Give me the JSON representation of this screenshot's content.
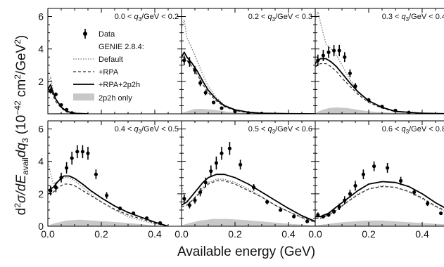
{
  "chart_data": {
    "type": "line",
    "xlabel": "Available energy (GeV)",
    "ylabel": "d²σ/dE_avail dq₃ (10⁻⁴² cm²/GeV²)",
    "ylabel_parts": {
      "d1": "d",
      "exp2": "2",
      "sigma": "σ/d",
      "E": "E",
      "avail": "avail",
      "dq": "dq",
      "sub3": "3",
      "unit_pre": " (10",
      "exp_neg42": "−42",
      "unit_post": " cm",
      "exp_sq": "2",
      "unit_tail": "/GeV",
      "exp_sq2": "2",
      "close": ")"
    },
    "xlim": [
      0,
      0.5
    ],
    "ylim": [
      0,
      6.5
    ],
    "x_ticks": [
      "0.0",
      "0.2",
      "0.4"
    ],
    "y_ticks": [
      "0",
      "2",
      "4",
      "6"
    ],
    "legend": {
      "title": "GENIE 2.8.4:",
      "data_label": "Data",
      "entries": [
        "Default",
        "+RPA",
        "+RPA+2p2h",
        "2p2h only"
      ],
      "colors": {
        "data": "#000000",
        "default": "#888888",
        "rpa": "#333333",
        "rpa2p2h": "#000000",
        "fill2p2h": "#c8c8c8"
      }
    },
    "panels": [
      {
        "label_left": "0.0 < ",
        "label_q": "q",
        "label_sub": "3",
        "label_right": "/GeV < 0.2",
        "data": {
          "x": [
            0.01,
            0.03,
            0.05,
            0.07,
            0.09
          ],
          "y": [
            1.4,
            1.2,
            0.55,
            0.25,
            0.05
          ],
          "err": [
            0.15,
            0.12,
            0.08,
            0.05,
            0.03
          ]
        },
        "default": {
          "x": [
            0.0,
            0.01,
            0.02,
            0.03,
            0.05,
            0.07,
            0.1,
            0.15
          ],
          "y": [
            1.8,
            2.3,
            1.4,
            0.9,
            0.4,
            0.15,
            0.03,
            0.0
          ]
        },
        "rpa": {
          "x": [
            0.0,
            0.01,
            0.02,
            0.03,
            0.05,
            0.07,
            0.1,
            0.15
          ],
          "y": [
            1.3,
            1.6,
            1.1,
            0.75,
            0.35,
            0.12,
            0.02,
            0.0
          ]
        },
        "rpa2p2h": {
          "x": [
            0.0,
            0.01,
            0.02,
            0.03,
            0.05,
            0.07,
            0.1,
            0.15
          ],
          "y": [
            1.5,
            1.8,
            1.3,
            0.9,
            0.42,
            0.15,
            0.03,
            0.0
          ]
        },
        "twop2h": {
          "x": [
            0.0,
            0.05,
            0.1,
            0.15
          ],
          "y": [
            0.03,
            0.05,
            0.02,
            0.0
          ]
        }
      },
      {
        "label_left": "0.2 < ",
        "label_q": "q",
        "label_sub": "3",
        "label_right": "/GeV < 0.3",
        "data": {
          "x": [
            0.01,
            0.03,
            0.05,
            0.07,
            0.09,
            0.12,
            0.15,
            0.2,
            0.25,
            0.3
          ],
          "y": [
            3.3,
            3.2,
            2.7,
            1.9,
            1.3,
            0.7,
            0.35,
            0.15,
            0.05,
            0.02
          ],
          "err": [
            0.3,
            0.3,
            0.25,
            0.2,
            0.15,
            0.1,
            0.08,
            0.05,
            0.03,
            0.02
          ]
        },
        "default": {
          "x": [
            0.0,
            0.01,
            0.02,
            0.04,
            0.06,
            0.08,
            0.1,
            0.13,
            0.16,
            0.2,
            0.25,
            0.3,
            0.4,
            0.5
          ],
          "y": [
            5.3,
            5.8,
            4.7,
            4.0,
            3.2,
            2.4,
            1.7,
            1.0,
            0.55,
            0.25,
            0.1,
            0.04,
            0.01,
            0.0
          ]
        },
        "rpa": {
          "x": [
            0.0,
            0.01,
            0.02,
            0.04,
            0.06,
            0.08,
            0.1,
            0.13,
            0.16,
            0.2,
            0.25,
            0.3,
            0.4,
            0.5
          ],
          "y": [
            3.2,
            3.5,
            3.3,
            2.9,
            2.4,
            1.8,
            1.3,
            0.8,
            0.45,
            0.2,
            0.08,
            0.03,
            0.01,
            0.0
          ]
        },
        "rpa2p2h": {
          "x": [
            0.0,
            0.01,
            0.02,
            0.04,
            0.06,
            0.08,
            0.1,
            0.13,
            0.16,
            0.2,
            0.25,
            0.3,
            0.4,
            0.5
          ],
          "y": [
            3.5,
            3.8,
            3.5,
            3.1,
            2.6,
            2.0,
            1.45,
            0.9,
            0.5,
            0.25,
            0.1,
            0.04,
            0.01,
            0.0
          ]
        },
        "twop2h": {
          "x": [
            0.0,
            0.02,
            0.05,
            0.08,
            0.12,
            0.16,
            0.2,
            0.3,
            0.5
          ],
          "y": [
            0.05,
            0.15,
            0.3,
            0.3,
            0.25,
            0.15,
            0.08,
            0.02,
            0.0
          ]
        }
      },
      {
        "label_left": "0.3 < ",
        "label_q": "q",
        "label_sub": "3",
        "label_right": "/GeV < 0.4",
        "data": {
          "x": [
            0.01,
            0.03,
            0.05,
            0.07,
            0.09,
            0.11,
            0.13,
            0.15,
            0.2,
            0.25,
            0.3,
            0.35
          ],
          "y": [
            3.3,
            3.6,
            3.8,
            3.9,
            3.9,
            3.5,
            2.5,
            1.7,
            0.85,
            0.45,
            0.2,
            0.08
          ],
          "err": [
            0.35,
            0.35,
            0.35,
            0.35,
            0.35,
            0.3,
            0.25,
            0.2,
            0.12,
            0.08,
            0.05,
            0.04
          ]
        },
        "default": {
          "x": [
            0.0,
            0.01,
            0.02,
            0.04,
            0.06,
            0.08,
            0.1,
            0.13,
            0.16,
            0.2,
            0.25,
            0.3,
            0.4,
            0.5
          ],
          "y": [
            5.8,
            6.3,
            5.6,
            4.3,
            4.0,
            3.6,
            3.0,
            2.1,
            1.4,
            0.8,
            0.4,
            0.15,
            0.04,
            0.0
          ]
        },
        "rpa": {
          "x": [
            0.0,
            0.01,
            0.02,
            0.04,
            0.06,
            0.08,
            0.1,
            0.13,
            0.16,
            0.2,
            0.25,
            0.3,
            0.4,
            0.5
          ],
          "y": [
            2.9,
            3.0,
            3.1,
            3.1,
            2.9,
            2.6,
            2.2,
            1.7,
            1.2,
            0.7,
            0.35,
            0.13,
            0.03,
            0.0
          ]
        },
        "rpa2p2h": {
          "x": [
            0.0,
            0.01,
            0.02,
            0.04,
            0.06,
            0.08,
            0.1,
            0.13,
            0.16,
            0.2,
            0.25,
            0.3,
            0.4,
            0.5
          ],
          "y": [
            3.1,
            3.3,
            3.4,
            3.4,
            3.2,
            2.9,
            2.5,
            1.9,
            1.35,
            0.8,
            0.4,
            0.15,
            0.04,
            0.0
          ]
        },
        "twop2h": {
          "x": [
            0.0,
            0.02,
            0.05,
            0.08,
            0.12,
            0.16,
            0.2,
            0.3,
            0.5
          ],
          "y": [
            0.05,
            0.2,
            0.35,
            0.4,
            0.35,
            0.25,
            0.15,
            0.05,
            0.0
          ]
        }
      },
      {
        "label_left": "0.4 < ",
        "label_q": "q",
        "label_sub": "3",
        "label_right": "/GeV < 0.5",
        "data": {
          "x": [
            0.01,
            0.03,
            0.05,
            0.07,
            0.09,
            0.11,
            0.13,
            0.15,
            0.18,
            0.22,
            0.27,
            0.32,
            0.37,
            0.42
          ],
          "y": [
            2.2,
            2.4,
            3.0,
            3.6,
            4.2,
            4.6,
            4.6,
            4.5,
            3.2,
            1.9,
            1.1,
            0.8,
            0.5,
            0.2
          ],
          "err": [
            0.3,
            0.3,
            0.3,
            0.35,
            0.4,
            0.4,
            0.4,
            0.4,
            0.3,
            0.2,
            0.12,
            0.1,
            0.08,
            0.05
          ]
        },
        "default": {
          "x": [
            0.0,
            0.02,
            0.04,
            0.06,
            0.08,
            0.1,
            0.13,
            0.16,
            0.2,
            0.25,
            0.3,
            0.35,
            0.4,
            0.45
          ],
          "y": [
            4.0,
            2.6,
            2.8,
            3.0,
            3.0,
            2.8,
            2.4,
            2.0,
            1.5,
            1.0,
            0.6,
            0.35,
            0.15,
            0.0
          ]
        },
        "rpa": {
          "x": [
            0.0,
            0.02,
            0.04,
            0.06,
            0.08,
            0.1,
            0.13,
            0.16,
            0.2,
            0.25,
            0.3,
            0.35,
            0.4,
            0.45
          ],
          "y": [
            2.0,
            2.1,
            2.4,
            2.6,
            2.6,
            2.5,
            2.2,
            1.9,
            1.5,
            1.05,
            0.7,
            0.45,
            0.2,
            0.0
          ]
        },
        "rpa2p2h": {
          "x": [
            0.0,
            0.02,
            0.04,
            0.06,
            0.08,
            0.1,
            0.13,
            0.16,
            0.2,
            0.25,
            0.3,
            0.35,
            0.4,
            0.45
          ],
          "y": [
            2.2,
            2.4,
            2.8,
            3.1,
            3.1,
            2.95,
            2.6,
            2.2,
            1.75,
            1.25,
            0.85,
            0.55,
            0.25,
            0.0
          ]
        },
        "twop2h": {
          "x": [
            0.0,
            0.03,
            0.07,
            0.12,
            0.17,
            0.22,
            0.3,
            0.4,
            0.45
          ],
          "y": [
            0.05,
            0.2,
            0.35,
            0.4,
            0.35,
            0.3,
            0.2,
            0.05,
            0.0
          ]
        }
      },
      {
        "label_left": "0.5 < ",
        "label_q": "q",
        "label_sub": "3",
        "label_right": "/GeV < 0.6",
        "data": {
          "x": [
            0.01,
            0.03,
            0.05,
            0.07,
            0.09,
            0.11,
            0.13,
            0.15,
            0.18,
            0.22,
            0.27,
            0.32,
            0.37,
            0.42,
            0.47
          ],
          "y": [
            1.7,
            1.3,
            1.6,
            2.1,
            2.7,
            3.4,
            3.9,
            4.5,
            4.8,
            3.8,
            2.4,
            1.5,
            1.0,
            0.6,
            0.3
          ],
          "err": [
            0.25,
            0.2,
            0.2,
            0.25,
            0.3,
            0.35,
            0.4,
            0.4,
            0.4,
            0.3,
            0.2,
            0.15,
            0.1,
            0.08,
            0.05
          ]
        },
        "default": {
          "x": [
            0.0,
            0.02,
            0.04,
            0.06,
            0.08,
            0.1,
            0.13,
            0.16,
            0.2,
            0.25,
            0.3,
            0.35,
            0.4,
            0.45,
            0.5
          ],
          "y": [
            2.5,
            1.3,
            1.6,
            2.0,
            2.4,
            2.7,
            2.9,
            2.9,
            2.7,
            2.3,
            1.8,
            1.3,
            0.9,
            0.5,
            0.25
          ]
        },
        "rpa": {
          "x": [
            0.0,
            0.02,
            0.04,
            0.06,
            0.08,
            0.1,
            0.13,
            0.16,
            0.2,
            0.25,
            0.3,
            0.35,
            0.4,
            0.45,
            0.5
          ],
          "y": [
            1.2,
            1.3,
            1.6,
            1.9,
            2.3,
            2.6,
            2.8,
            2.8,
            2.6,
            2.2,
            1.8,
            1.3,
            0.9,
            0.55,
            0.25
          ]
        },
        "rpa2p2h": {
          "x": [
            0.0,
            0.02,
            0.04,
            0.06,
            0.08,
            0.1,
            0.13,
            0.16,
            0.2,
            0.25,
            0.3,
            0.35,
            0.4,
            0.45,
            0.5
          ],
          "y": [
            1.3,
            1.5,
            1.9,
            2.3,
            2.7,
            3.0,
            3.2,
            3.2,
            3.0,
            2.6,
            2.1,
            1.6,
            1.1,
            0.65,
            0.3
          ]
        },
        "twop2h": {
          "x": [
            0.0,
            0.03,
            0.07,
            0.12,
            0.17,
            0.22,
            0.3,
            0.4,
            0.5
          ],
          "y": [
            0.05,
            0.2,
            0.35,
            0.45,
            0.45,
            0.4,
            0.3,
            0.15,
            0.05
          ]
        }
      },
      {
        "label_left": "0.6 < ",
        "label_q": "q",
        "label_sub": "3",
        "label_right": "/GeV < 0.8",
        "data": {
          "x": [
            0.01,
            0.03,
            0.05,
            0.07,
            0.09,
            0.11,
            0.13,
            0.15,
            0.18,
            0.22,
            0.27,
            0.32,
            0.37,
            0.42,
            0.47
          ],
          "y": [
            0.7,
            0.6,
            0.7,
            0.9,
            1.2,
            1.6,
            2.0,
            2.5,
            3.2,
            3.7,
            3.6,
            2.8,
            2.1,
            1.4,
            0.8
          ],
          "err": [
            0.15,
            0.12,
            0.12,
            0.15,
            0.2,
            0.25,
            0.25,
            0.3,
            0.3,
            0.3,
            0.3,
            0.25,
            0.2,
            0.15,
            0.1
          ]
        },
        "default": {
          "x": [
            0.0,
            0.02,
            0.05,
            0.08,
            0.12,
            0.16,
            0.2,
            0.25,
            0.3,
            0.35,
            0.4,
            0.45,
            0.5
          ],
          "y": [
            0.5,
            0.5,
            0.7,
            1.0,
            1.5,
            2.0,
            2.3,
            2.5,
            2.4,
            2.1,
            1.7,
            1.2,
            0.8
          ]
        },
        "rpa": {
          "x": [
            0.0,
            0.02,
            0.05,
            0.08,
            0.12,
            0.16,
            0.2,
            0.25,
            0.3,
            0.35,
            0.4,
            0.45,
            0.5
          ],
          "y": [
            0.5,
            0.5,
            0.7,
            1.0,
            1.5,
            1.95,
            2.3,
            2.45,
            2.4,
            2.15,
            1.75,
            1.25,
            0.85
          ]
        },
        "rpa2p2h": {
          "x": [
            0.0,
            0.02,
            0.05,
            0.08,
            0.12,
            0.16,
            0.2,
            0.25,
            0.3,
            0.35,
            0.4,
            0.45,
            0.5
          ],
          "y": [
            0.6,
            0.6,
            0.8,
            1.2,
            1.7,
            2.2,
            2.6,
            2.75,
            2.7,
            2.45,
            2.0,
            1.45,
            1.0
          ]
        },
        "twop2h": {
          "x": [
            0.0,
            0.05,
            0.1,
            0.15,
            0.2,
            0.25,
            0.3,
            0.4,
            0.5
          ],
          "y": [
            0.05,
            0.15,
            0.25,
            0.3,
            0.35,
            0.35,
            0.3,
            0.2,
            0.1
          ]
        }
      }
    ]
  }
}
